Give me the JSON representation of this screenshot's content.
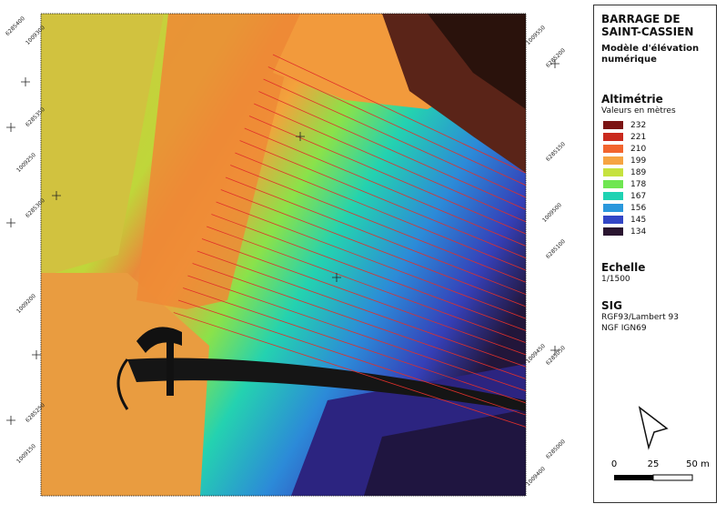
{
  "title": "BARRAGE DE SAINT-CASSIEN",
  "subtitle": "Modèle d'élévation numérique",
  "legend": {
    "title": "Altimétrie",
    "unit_note": "Valeurs en mètres",
    "entries": [
      {
        "value": 232,
        "color": "#7b1414"
      },
      {
        "value": 221,
        "color": "#c92a1e"
      },
      {
        "value": 210,
        "color": "#f2652f"
      },
      {
        "value": 199,
        "color": "#f6a442"
      },
      {
        "value": 189,
        "color": "#c6e23e"
      },
      {
        "value": 178,
        "color": "#6fe651"
      },
      {
        "value": 167,
        "color": "#1fd2b2"
      },
      {
        "value": 156,
        "color": "#2a98dc"
      },
      {
        "value": 145,
        "color": "#3346c6"
      },
      {
        "value": 134,
        "color": "#2a1530"
      }
    ]
  },
  "scale": {
    "title": "Echelle",
    "value": "1/1500",
    "ticks": [
      "0",
      "25",
      "50 m"
    ]
  },
  "sig": {
    "title": "SIG",
    "lines": [
      "RGF93/Lambert 93",
      "NGF IGN69"
    ]
  },
  "grid_labels": {
    "left": [
      "6285400",
      "1009300",
      "6285350",
      "1009250",
      "6285300",
      "1009200",
      "6285250",
      "1009150"
    ],
    "right": [
      "1009550",
      "6285200",
      "6285150",
      "1009500",
      "6285100",
      "1009450",
      "6285050",
      "6285000",
      "1009400"
    ]
  }
}
